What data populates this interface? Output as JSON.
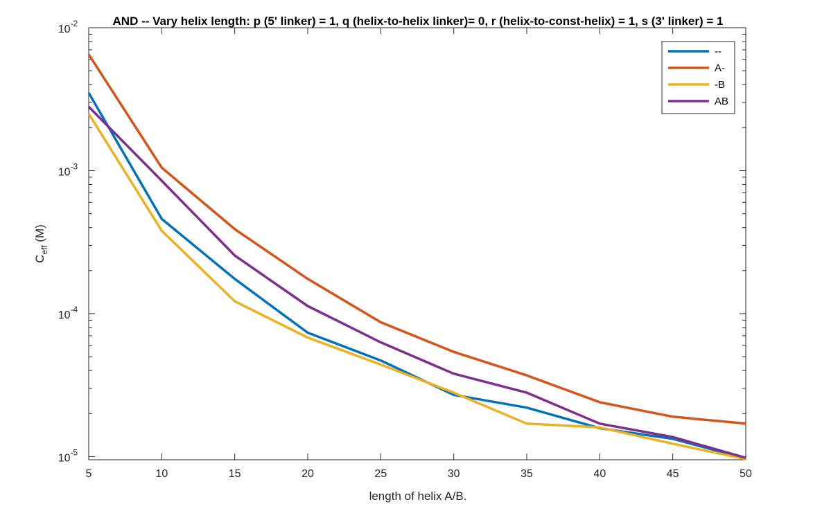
{
  "chart_data": {
    "type": "line",
    "title": "AND -- Vary helix length: p (5' linker) = 1, q (helix-to-helix linker)= 0, r (helix-to-const-helix) = 1, s (3' linker) = 1",
    "xlabel": "length of helix A/B.",
    "ylabel": {
      "base": "C",
      "sub": "eff",
      "rest": " (M)"
    },
    "xlim": [
      5,
      50
    ],
    "ylim": [
      9.5e-06,
      0.01
    ],
    "yscale": "log",
    "grid": false,
    "legend_position": "top-right",
    "x": [
      5,
      10,
      15,
      20,
      25,
      30,
      35,
      40,
      45,
      50
    ],
    "x_ticks": [
      "5",
      "10",
      "15",
      "20",
      "25",
      "30",
      "35",
      "40",
      "45",
      "50"
    ],
    "y_ticks": [
      {
        "value": 0.01,
        "base": "10",
        "exp": "-2"
      },
      {
        "value": 0.001,
        "base": "10",
        "exp": "-3"
      },
      {
        "value": 0.0001,
        "base": "10",
        "exp": "-4"
      },
      {
        "value": 1e-05,
        "base": "10",
        "exp": "-5"
      }
    ],
    "series": [
      {
        "name": "--",
        "color": "#0072BD",
        "values": [
          0.0035,
          0.00046,
          0.000175,
          7.35e-05,
          4.7e-05,
          2.7e-05,
          2.2e-05,
          1.58e-05,
          1.33e-05,
          9.7e-06
        ]
      },
      {
        "name": "A-",
        "color": "#D95319",
        "values": [
          0.0065,
          0.00105,
          0.00039,
          0.000175,
          8.7e-05,
          5.4e-05,
          3.7e-05,
          2.4e-05,
          1.9e-05,
          1.7e-05
        ]
      },
      {
        "name": "-B",
        "color": "#EDB120",
        "values": [
          0.0025,
          0.00038,
          0.000122,
          6.8e-05,
          4.4e-05,
          2.8e-05,
          1.7e-05,
          1.6e-05,
          1.23e-05,
          9.6e-06
        ]
      },
      {
        "name": "AB",
        "color": "#7E2F8E",
        "values": [
          0.0028,
          0.00085,
          0.000255,
          0.000113,
          6.3e-05,
          3.8e-05,
          2.8e-05,
          1.7e-05,
          1.37e-05,
          9.8e-06
        ]
      }
    ]
  }
}
